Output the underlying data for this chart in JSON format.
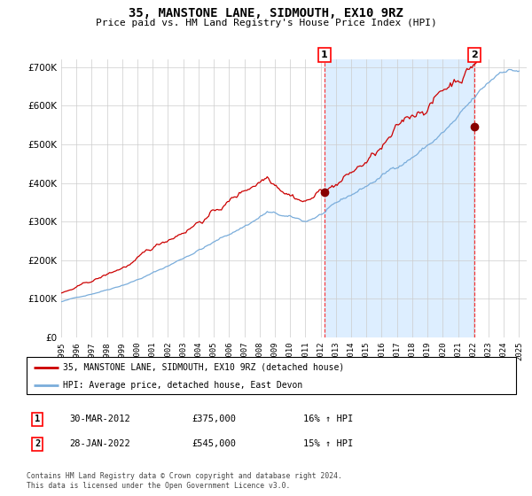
{
  "title": "35, MANSTONE LANE, SIDMOUTH, EX10 9RZ",
  "subtitle": "Price paid vs. HM Land Registry's House Price Index (HPI)",
  "ylim": [
    0,
    720000
  ],
  "yticks": [
    0,
    100000,
    200000,
    300000,
    400000,
    500000,
    600000,
    700000
  ],
  "sale1": {
    "date_num": 2012.25,
    "price": 375000,
    "label": "1"
  },
  "sale2": {
    "date_num": 2022.08,
    "price": 545000,
    "label": "2"
  },
  "property_color": "#cc0000",
  "hpi_color": "#7aaddb",
  "shade_color": "#ddeeff",
  "legend_property": "35, MANSTONE LANE, SIDMOUTH, EX10 9RZ (detached house)",
  "legend_hpi": "HPI: Average price, detached house, East Devon",
  "table_rows": [
    {
      "num": "1",
      "date": "30-MAR-2012",
      "price": "£375,000",
      "hpi": "16% ↑ HPI"
    },
    {
      "num": "2",
      "date": "28-JAN-2022",
      "price": "£545,000",
      "hpi": "15% ↑ HPI"
    }
  ],
  "footnote": "Contains HM Land Registry data © Crown copyright and database right 2024.\nThis data is licensed under the Open Government Licence v3.0.",
  "background_color": "#ffffff",
  "grid_color": "#cccccc",
  "xlim_start": 1995,
  "xlim_end": 2025.5
}
